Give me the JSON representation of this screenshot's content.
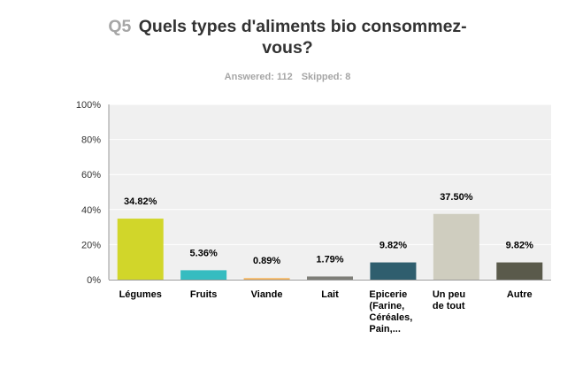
{
  "header": {
    "question_number": "Q5",
    "question_text": "Quels types d'aliments bio consommez-vous?",
    "answered_label": "Answered: 112",
    "skipped_label": "Skipped: 8"
  },
  "chart_data": {
    "type": "bar",
    "categories": [
      "Légumes",
      "Fruits",
      "Viande",
      "Lait",
      "Epicerie (Farine, Céréales, Pain,...",
      "Un peu de tout",
      "Autre"
    ],
    "category_lines": [
      [
        "Légumes"
      ],
      [
        "Fruits"
      ],
      [
        "Viande"
      ],
      [
        "Lait"
      ],
      [
        "Epicerie",
        "(Farine,",
        "Céréales,",
        "Pain,..."
      ],
      [
        "Un peu",
        "de tout"
      ],
      [
        "Autre"
      ]
    ],
    "values": [
      34.82,
      5.36,
      0.89,
      1.79,
      9.82,
      37.5,
      9.82
    ],
    "value_labels": [
      "34.82%",
      "5.36%",
      "0.89%",
      "1.79%",
      "9.82%",
      "37.50%",
      "9.82%"
    ],
    "colors": [
      "#d1d62a",
      "#36bcc0",
      "#f5b55f",
      "#7d7d77",
      "#2f5e6e",
      "#cfcdbf",
      "#5a5a4b"
    ],
    "ylim": [
      0,
      100
    ],
    "yticks": [
      0,
      20,
      40,
      60,
      80,
      100
    ],
    "ytick_labels": [
      "0%",
      "20%",
      "40%",
      "60%",
      "80%",
      "100%"
    ],
    "plot_background": "#f0f0f0",
    "gridlines": true,
    "legend": "none",
    "title": "",
    "xlabel": "",
    "ylabel": ""
  }
}
